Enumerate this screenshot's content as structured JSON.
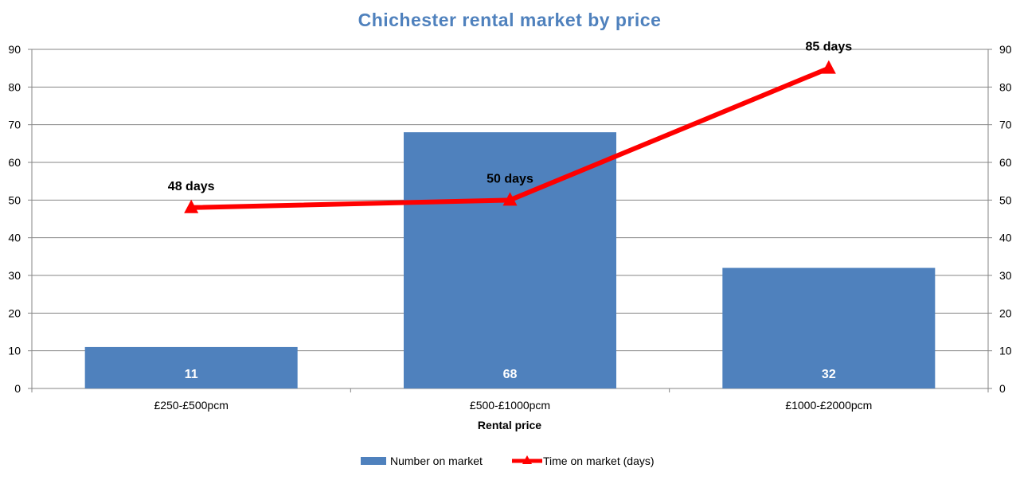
{
  "chart_data": {
    "type": "bar",
    "title": "Chichester rental market by price",
    "xlabel": "Rental price",
    "categories": [
      "£250-£500pcm",
      "£500-£1000pcm",
      "£1000-£2000pcm"
    ],
    "ylim": [
      0,
      90
    ],
    "y2lim": [
      0,
      90
    ],
    "yticks": [
      0,
      10,
      20,
      30,
      40,
      50,
      60,
      70,
      80,
      90
    ],
    "grid": true,
    "legend_position": "bottom",
    "series": [
      {
        "name": "Number on market",
        "type": "bar",
        "axis": "left",
        "values": [
          11,
          68,
          32
        ],
        "labels": [
          "11",
          "68",
          "32"
        ],
        "color": "#4F81BD"
      },
      {
        "name": "Time on market (days)",
        "type": "line",
        "axis": "right",
        "marker": "triangle",
        "values": [
          48,
          50,
          85
        ],
        "labels": [
          "48 days",
          "50 days",
          "85 days"
        ],
        "color": "#FF0000"
      }
    ],
    "colors": {
      "title": "#4F81BD",
      "grid": "#868686",
      "axis": "#868686"
    }
  }
}
